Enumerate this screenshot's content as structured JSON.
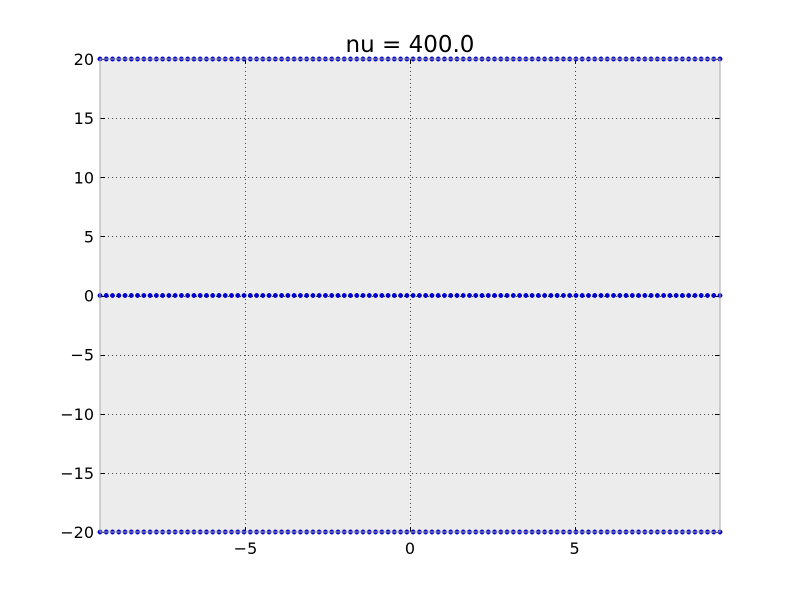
{
  "chart_data": {
    "type": "scatter",
    "title": "nu = 400.0",
    "xlabel": "",
    "ylabel": "",
    "xlim": [
      -9.42,
      9.42
    ],
    "ylim": [
      -20,
      20
    ],
    "xticks": [
      -5,
      0,
      5
    ],
    "yticks": [
      -20,
      -15,
      -10,
      -5,
      0,
      5,
      10,
      15,
      20
    ],
    "x_tick_labels": [
      "−5",
      "0",
      "5"
    ],
    "y_tick_labels": [
      "−20",
      "−15",
      "−10",
      "−5",
      "0",
      "5",
      "10",
      "15",
      "20"
    ],
    "grid": true,
    "legend": "none",
    "series": [
      {
        "y": 20,
        "x_range": [
          -9.42,
          9.42
        ],
        "points": 100,
        "color": "#0000cc"
      },
      {
        "y": 0,
        "x_range": [
          -9.42,
          9.42
        ],
        "points": 100,
        "color": "#0000cc"
      },
      {
        "y": -20,
        "x_range": [
          -9.42,
          9.42
        ],
        "points": 100,
        "color": "#0000cc"
      }
    ],
    "colors": {
      "plot_background": "#ececec",
      "grid": "#444444",
      "frame": "#aaaaaa",
      "marker": "#0000cc"
    }
  }
}
